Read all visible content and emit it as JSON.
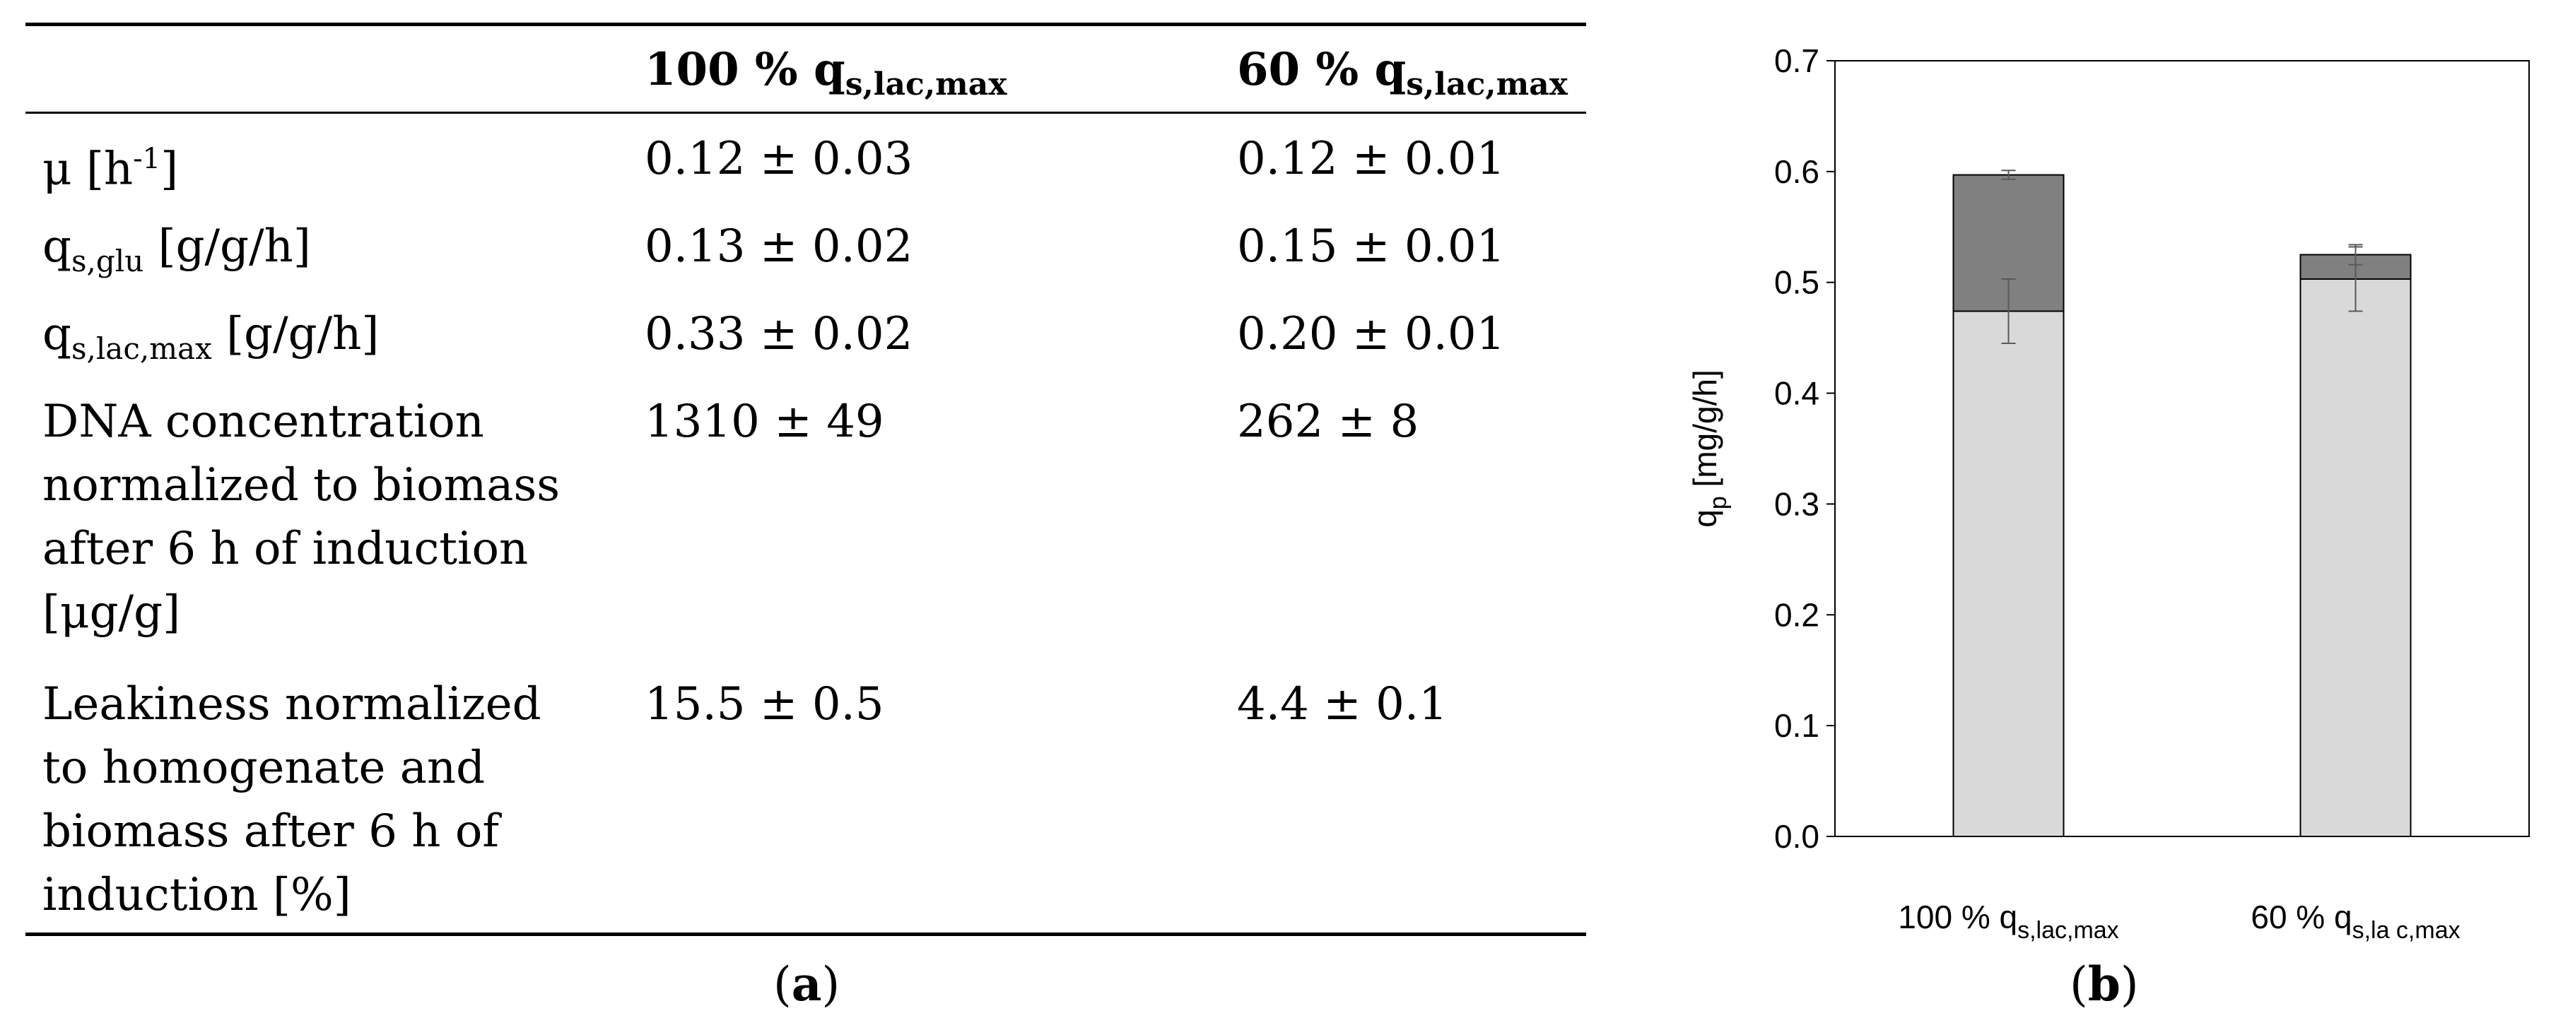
{
  "table": {
    "headers": {
      "col2_main": "100 % q",
      "col2_sub": "s,lac,max",
      "col3_main": "60 % q",
      "col3_sub": "s,lac,max"
    },
    "rows": [
      {
        "label_main": "μ [h",
        "label_sup": "-1",
        "label_after": "]",
        "v1": "0.12 ± 0.03",
        "v2": "0.12 ± 0.01"
      },
      {
        "label_main": "q",
        "label_sub": "s,glu",
        "label_after": " [g/g/h]",
        "v1": "0.13 ± 0.02",
        "v2": "0.15 ± 0.01"
      },
      {
        "label_main": "q",
        "label_sub": "s,lac,max",
        "label_after": " [g/g/h]",
        "v1": "0.33 ± 0.02",
        "v2": "0.20 ± 0.01"
      },
      {
        "label_lines": [
          "DNA concentration",
          "normalized to biomass",
          "after 6 h of induction",
          "[μg/g]"
        ],
        "v1": "1310 ± 49",
        "v2": "262 ± 8"
      },
      {
        "label_lines": [
          "Leakiness normalized",
          "to homogenate and",
          "biomass after 6 h of",
          "induction [%]"
        ],
        "v1": "15.5 ± 0.5",
        "v2": "4.4 ± 0.1"
      }
    ],
    "caption_open": "(",
    "caption_letter": "a",
    "caption_close": ")"
  },
  "chart_data": {
    "type": "bar",
    "stacked": true,
    "categories": [
      {
        "main": "100 % q",
        "sub": "s,lac,max"
      },
      {
        "main": "60 % q",
        "sub": "s,la c,max"
      }
    ],
    "series": [
      {
        "color": "#d9d9d9",
        "values": [
          0.474,
          0.503
        ],
        "errors": [
          0.029,
          0.029
        ]
      },
      {
        "color": "#808080",
        "values": [
          0.123,
          0.022
        ],
        "errors": [
          0.004,
          0.009
        ]
      }
    ],
    "ylabel_main": "q",
    "ylabel_sub": "p",
    "ylabel_after": " [mg/g/h]",
    "ylim": [
      0,
      0.7
    ],
    "yticks": [
      "0.0",
      "0.1",
      "0.2",
      "0.3",
      "0.4",
      "0.5",
      "0.6",
      "0.7"
    ],
    "grid": false,
    "legend": false,
    "caption_open": "(",
    "caption_letter": "b",
    "caption_close": ")"
  }
}
